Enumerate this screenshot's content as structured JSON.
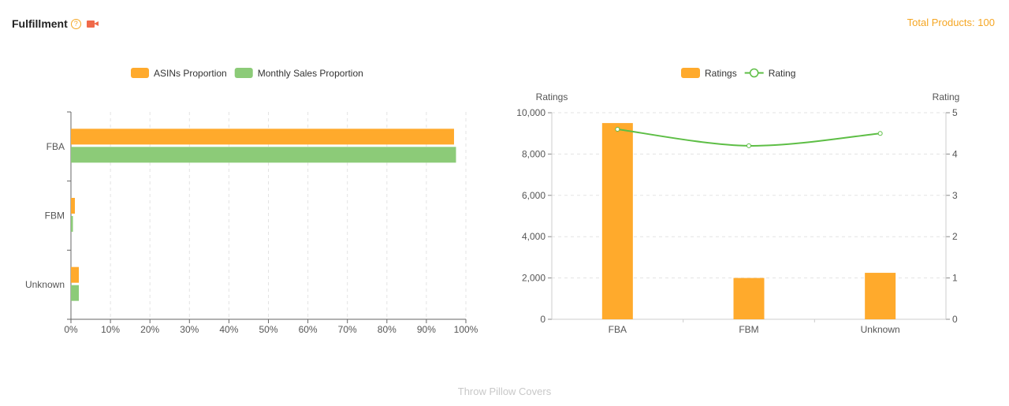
{
  "header": {
    "title": "Fulfillment",
    "help_icon": "question-circle-icon",
    "video_icon": "video-camera-icon",
    "total_label": "Total Products:",
    "total_value": "100"
  },
  "footer": {
    "text": "Throw Pillow Covers"
  },
  "colors": {
    "orange": "#FFAA2C",
    "green": "#8CCB78",
    "line": "#5DBE45"
  },
  "chart_data": [
    {
      "type": "bar",
      "orientation": "horizontal",
      "categories": [
        "FBA",
        "FBM",
        "Unknown"
      ],
      "series": [
        {
          "name": "ASINs  Proportion",
          "values": [
            97,
            1,
            2
          ],
          "color": "#FFAA2C"
        },
        {
          "name": "Monthly Sales Proportion",
          "values": [
            97.5,
            0.5,
            2
          ],
          "color": "#8CCB78"
        }
      ],
      "xlim": [
        0,
        100
      ],
      "x_ticks": [
        "0%",
        "10%",
        "20%",
        "30%",
        "40%",
        "50%",
        "60%",
        "70%",
        "80%",
        "90%",
        "100%"
      ],
      "legend_position": "top-center",
      "grid": true
    },
    {
      "type": "bar+line",
      "categories": [
        "FBA",
        "FBM",
        "Unknown"
      ],
      "series": [
        {
          "name": "Ratings",
          "type": "bar",
          "axis": "left",
          "values": [
            9500,
            2000,
            2250
          ],
          "color": "#FFAA2C"
        },
        {
          "name": "Rating",
          "type": "line",
          "axis": "right",
          "values": [
            4.6,
            4.2,
            4.5
          ],
          "color": "#5DBE45"
        }
      ],
      "ylabel_left": "Ratings",
      "ylabel_right": "Rating",
      "ylim_left": [
        0,
        10000
      ],
      "ylim_right": [
        0,
        5
      ],
      "y_ticks_left": [
        "0",
        "2,000",
        "4,000",
        "6,000",
        "8,000",
        "10,000"
      ],
      "y_ticks_right": [
        "0",
        "1",
        "2",
        "3",
        "4",
        "5"
      ],
      "legend_position": "top-center",
      "grid": true
    }
  ]
}
